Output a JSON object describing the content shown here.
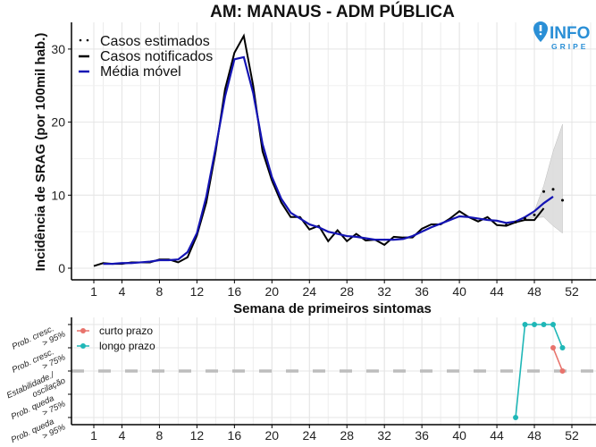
{
  "chart_data": [
    {
      "type": "line",
      "title": "AM: MANAUS - ADM PÚBLICA",
      "xlabel": "Semana de primeiros sintomas",
      "ylabel": "Incidência de SRAG (por 100mil hab.)",
      "xlim": [
        0,
        54
      ],
      "ylim": [
        -1.5,
        33
      ],
      "xticks": [
        1,
        4,
        8,
        12,
        16,
        20,
        24,
        28,
        32,
        36,
        40,
        44,
        48,
        52
      ],
      "yticks": [
        0,
        10,
        20,
        30
      ],
      "legend": {
        "placement": "top-left",
        "entries": [
          "Casos estimados",
          "Casos notificados",
          "Média móvel"
        ]
      },
      "series": [
        {
          "name": "Casos notificados",
          "color": "#000000",
          "x": [
            1,
            2,
            3,
            4,
            5,
            6,
            7,
            8,
            9,
            10,
            11,
            12,
            13,
            14,
            15,
            16,
            17,
            18,
            19,
            20,
            21,
            22,
            23,
            24,
            25,
            26,
            27,
            28,
            29,
            30,
            31,
            32,
            33,
            34,
            35,
            36,
            37,
            38,
            39,
            40,
            41,
            42,
            43,
            44,
            45,
            46,
            47,
            48,
            49
          ],
          "values": [
            0.3,
            0.7,
            0.6,
            0.6,
            0.8,
            0.8,
            0.8,
            1.2,
            1.2,
            0.8,
            1.5,
            4.5,
            9,
            16,
            24.5,
            29.5,
            31.8,
            25,
            16,
            12,
            9,
            7,
            7,
            5.3,
            5.8,
            3.7,
            5.2,
            3.7,
            4.7,
            3.8,
            3.9,
            3.2,
            4.3,
            4.2,
            4.2,
            5.4,
            6,
            6,
            6.8,
            7.8,
            7,
            6.4,
            7,
            5.9,
            5.8,
            6.3,
            6.6,
            6.6,
            8.2
          ]
        },
        {
          "name": "Média móvel",
          "color": "#1414b4",
          "x": [
            2,
            3,
            4,
            5,
            6,
            7,
            8,
            9,
            10,
            11,
            12,
            13,
            14,
            15,
            16,
            17,
            18,
            19,
            20,
            21,
            22,
            23,
            24,
            25,
            26,
            27,
            28,
            29,
            30,
            31,
            32,
            33,
            34,
            35,
            36,
            37,
            38,
            39,
            40,
            41,
            42,
            43,
            44,
            45,
            46,
            47,
            48,
            49,
            50
          ],
          "values": [
            0.6,
            0.6,
            0.7,
            0.7,
            0.8,
            0.9,
            1.1,
            1.1,
            1.2,
            2.2,
            4.8,
            9.8,
            16.5,
            23.5,
            28.6,
            28.9,
            24,
            17,
            12.5,
            9.5,
            7.6,
            6.8,
            6,
            5.6,
            5,
            4.7,
            4.4,
            4.3,
            4.1,
            3.9,
            3.9,
            3.9,
            4,
            4.4,
            5,
            5.6,
            6.1,
            6.6,
            7.1,
            7,
            6.8,
            6.6,
            6.5,
            6.2,
            6.4,
            7,
            7.8,
            8.9,
            9.8
          ]
        },
        {
          "name": "Casos estimados",
          "color": "#000000",
          "x": [
            45,
            46,
            47,
            48,
            49,
            50,
            51
          ],
          "values": [
            5.9,
            6.3,
            6.8,
            7.3,
            10.5,
            10.8,
            9.3
          ]
        }
      ],
      "band": {
        "name": "Intervalo de confiança",
        "x": [
          46,
          47,
          48,
          49,
          50,
          51
        ],
        "lower": [
          6.2,
          6.7,
          6.9,
          7,
          5.8,
          4.8
        ],
        "upper": [
          6.4,
          7,
          7.8,
          11.3,
          16,
          19.7
        ]
      }
    },
    {
      "type": "line",
      "xlabel": "",
      "xlim": [
        0,
        54
      ],
      "xticks": [
        1,
        4,
        8,
        12,
        16,
        20,
        24,
        28,
        32,
        36,
        40,
        44,
        48,
        52
      ],
      "ytick_labels": [
        "Prob. cresc. > 95%",
        "Prob. cresc. > 75%",
        "Estabilidade./ oscilação",
        "Prob. queda > 75%",
        "Prob. queda > 95%"
      ],
      "ylevels": [
        2,
        1,
        0,
        -1,
        -2
      ],
      "reference_line": 0,
      "legend": {
        "placement": "top-left",
        "entries": [
          "curto prazo",
          "longo prazo"
        ]
      },
      "series": [
        {
          "name": "curto prazo",
          "color": "#e8736c",
          "x": [
            50,
            51
          ],
          "values": [
            1,
            0
          ]
        },
        {
          "name": "longo prazo",
          "color": "#1fb7b7",
          "x": [
            46,
            47,
            48,
            49,
            50,
            51
          ],
          "values": [
            -2,
            2,
            2,
            2,
            2,
            1
          ]
        }
      ]
    }
  ],
  "logo": {
    "text": "INFO",
    "subtext": "GRIPE"
  }
}
